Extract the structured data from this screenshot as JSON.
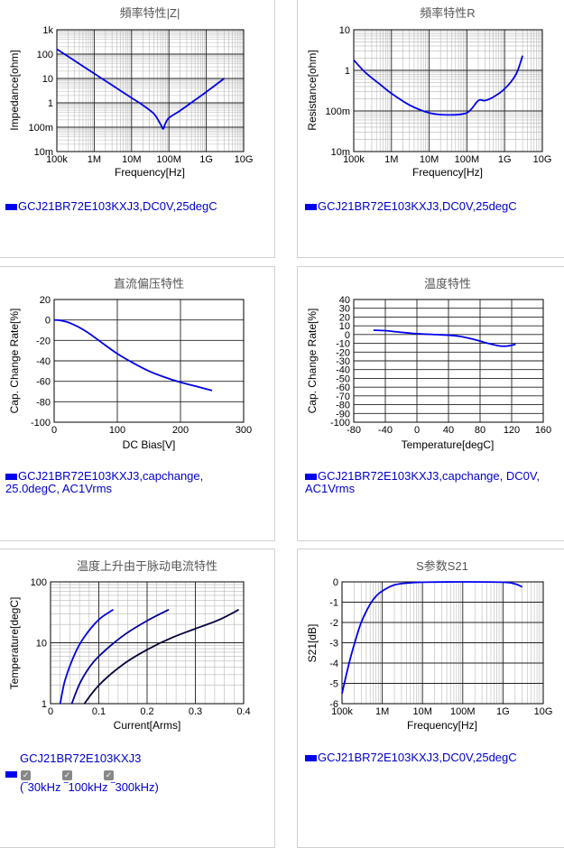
{
  "charts": {
    "imp": {
      "title": "頻率特性|Z|",
      "xlabel": "Frequency[Hz]",
      "ylabel": "Impedance[ohm]",
      "xticks": [
        "100k",
        "1M",
        "10M",
        "100M",
        "1G",
        "10G"
      ],
      "yticks": [
        "1k",
        "100",
        "10",
        "1",
        "100m",
        "10m"
      ],
      "legend": "GCJ21BR72E103KXJ3,DC0V,25degC"
    },
    "res": {
      "title": "頻率特性R",
      "xlabel": "Frequency[Hz]",
      "ylabel": "Resistance[ohm]",
      "xticks": [
        "100k",
        "1M",
        "10M",
        "100M",
        "1G",
        "10G"
      ],
      "yticks": [
        "10",
        "1",
        "100m",
        "10m"
      ],
      "legend": "GCJ21BR72E103KXJ3,DC0V,25degC"
    },
    "dcb": {
      "title": "直流偏压特性",
      "xlabel": "DC Bias[V]",
      "ylabel": "Cap. Change Rate[%]",
      "xticks": [
        "0",
        "100",
        "200",
        "300"
      ],
      "yticks": [
        "20",
        "0",
        "-20",
        "-40",
        "-60",
        "-80",
        "-100"
      ],
      "legend_line1": "GCJ21BR72E103KXJ3,capchange,",
      "legend_line2": "25.0degC, AC1Vrms"
    },
    "tmp": {
      "title": "温度特性",
      "xlabel": "Temperature[degC]",
      "ylabel": "Cap. Change Rate[%]",
      "xticks": [
        "-80",
        "-40",
        "0",
        "40",
        "80",
        "120",
        "160"
      ],
      "yticks": [
        "40",
        "30",
        "20",
        "10",
        "0",
        "-10",
        "-20",
        "-30",
        "-40",
        "-50",
        "-60",
        "-70",
        "-80",
        "-90",
        "-100"
      ],
      "legend_line1": "GCJ21BR72E103KXJ3,capchange, DC0V,",
      "legend_line2": "AC1Vrms"
    },
    "rip": {
      "title": "温度上升由于脉动电流特性",
      "xlabel": "Current[Arms]",
      "ylabel": "Temperature[degC]",
      "xticks": [
        "0",
        "0.1",
        "0.2",
        "0.3",
        "0.4"
      ],
      "yticks": [
        "100",
        "10",
        "1"
      ],
      "part": "GCJ21BR72E103KXJ3",
      "freq_labels": "(‾30kHz ‾100kHz ‾300kHz)"
    },
    "s21": {
      "title": "S参数S21",
      "xlabel": "Frequency[Hz]",
      "ylabel": "S21[dB]",
      "xticks": [
        "100k",
        "1M",
        "10M",
        "100M",
        "1G",
        "10G"
      ],
      "yticks": [
        "0",
        "-1",
        "-2",
        "-3",
        "-4",
        "-5",
        "-6"
      ],
      "legend": "GCJ21BR72E103KXJ3,DC0V,25degC"
    }
  },
  "chart_data": [
    {
      "type": "line",
      "title": "頻率特性|Z|",
      "xlabel": "Frequency[Hz]",
      "ylabel": "Impedance[ohm]",
      "log_x": true,
      "log_y": true,
      "xlim": [
        100000,
        10000000000
      ],
      "ylim": [
        0.01,
        1000
      ],
      "series": [
        {
          "name": "GCJ21BR72E103KXJ3,DC0V,25degC",
          "x": [
            100000,
            300000,
            1000000,
            3000000,
            10000000,
            20000000,
            40000000,
            60000000,
            70000000,
            80000000,
            100000000,
            200000000,
            500000000,
            1000000000,
            3000000000
          ],
          "y": [
            160,
            53,
            16,
            5.3,
            1.6,
            0.8,
            0.35,
            0.13,
            0.085,
            0.14,
            0.24,
            0.48,
            1.3,
            2.8,
            10
          ]
        }
      ]
    },
    {
      "type": "line",
      "title": "頻率特性R",
      "xlabel": "Frequency[Hz]",
      "ylabel": "Resistance[ohm]",
      "log_x": true,
      "log_y": true,
      "xlim": [
        100000,
        10000000000
      ],
      "ylim": [
        0.01,
        10
      ],
      "series": [
        {
          "name": "GCJ21BR72E103KXJ3,DC0V,25degC",
          "x": [
            100000,
            200000,
            500000,
            1000000,
            3000000,
            10000000,
            30000000,
            100000000,
            200000000,
            300000000,
            500000000,
            1000000000,
            2000000000,
            3000000000
          ],
          "y": [
            1.8,
            0.9,
            0.45,
            0.27,
            0.14,
            0.09,
            0.08,
            0.09,
            0.18,
            0.18,
            0.22,
            0.35,
            0.8,
            2.3
          ]
        }
      ]
    },
    {
      "type": "line",
      "title": "直流偏压特性",
      "xlabel": "DC Bias[V]",
      "ylabel": "Cap. Change Rate[%]",
      "xlim": [
        0,
        300
      ],
      "ylim": [
        -100,
        20
      ],
      "series": [
        {
          "name": "GCJ21BR72E103KXJ3,capchange,25.0degC, AC1Vrms",
          "x": [
            0,
            10,
            25,
            50,
            75,
            100,
            125,
            150,
            175,
            200,
            225,
            250
          ],
          "y": [
            0,
            -0.5,
            -3,
            -11,
            -22,
            -33,
            -42,
            -50,
            -56,
            -61,
            -65,
            -69
          ]
        }
      ]
    },
    {
      "type": "line",
      "title": "温度特性",
      "xlabel": "Temperature[degC]",
      "ylabel": "Cap. Change Rate[%]",
      "xlim": [
        -80,
        160
      ],
      "ylim": [
        -100,
        40
      ],
      "series": [
        {
          "name": "GCJ21BR72E103KXJ3,capchange, DC0V, AC1Vrms",
          "x": [
            -55,
            -40,
            -25,
            0,
            25,
            50,
            70,
            90,
            105,
            115,
            125
          ],
          "y": [
            5,
            4.5,
            3,
            1,
            0,
            -1.5,
            -5,
            -10,
            -13,
            -13,
            -11
          ]
        }
      ]
    },
    {
      "type": "line",
      "title": "温度上升由于脉动电流特性",
      "xlabel": "Current[Arms]",
      "ylabel": "Temperature[degC]",
      "log_y": true,
      "xlim": [
        0,
        0.4
      ],
      "ylim": [
        1,
        100
      ],
      "series": [
        {
          "name": "30kHz",
          "x": [
            0.02,
            0.03,
            0.05,
            0.07,
            0.1,
            0.13
          ],
          "y": [
            1,
            2.4,
            6.5,
            12.5,
            24,
            35
          ]
        },
        {
          "name": "100kHz",
          "x": [
            0.044,
            0.06,
            0.08,
            0.1,
            0.15,
            0.2,
            0.245
          ],
          "y": [
            1,
            2.1,
            3.9,
            6,
            13,
            23,
            35
          ]
        },
        {
          "name": "300kHz",
          "x": [
            0.07,
            0.1,
            0.15,
            0.2,
            0.25,
            0.3,
            0.35,
            0.39
          ],
          "y": [
            1,
            2,
            4.4,
            7.7,
            12,
            17,
            24,
            35
          ]
        }
      ]
    },
    {
      "type": "line",
      "title": "S参数S21",
      "xlabel": "Frequency[Hz]",
      "ylabel": "S21[dB]",
      "log_x": true,
      "xlim": [
        100000,
        10000000000
      ],
      "ylim": [
        -6,
        0
      ],
      "series": [
        {
          "name": "GCJ21BR72E103KXJ3,DC0V,25degC",
          "x": [
            100000,
            150000,
            200000,
            300000,
            500000,
            700000,
            1000000,
            2000000,
            5000000,
            10000000,
            100000000,
            1000000000,
            2000000000,
            3000000000
          ],
          "y": [
            -5.5,
            -4,
            -3.1,
            -2,
            -1.1,
            -0.7,
            -0.45,
            -0.15,
            -0.05,
            -0.02,
            0,
            -0.02,
            -0.1,
            -0.25
          ]
        }
      ]
    }
  ]
}
